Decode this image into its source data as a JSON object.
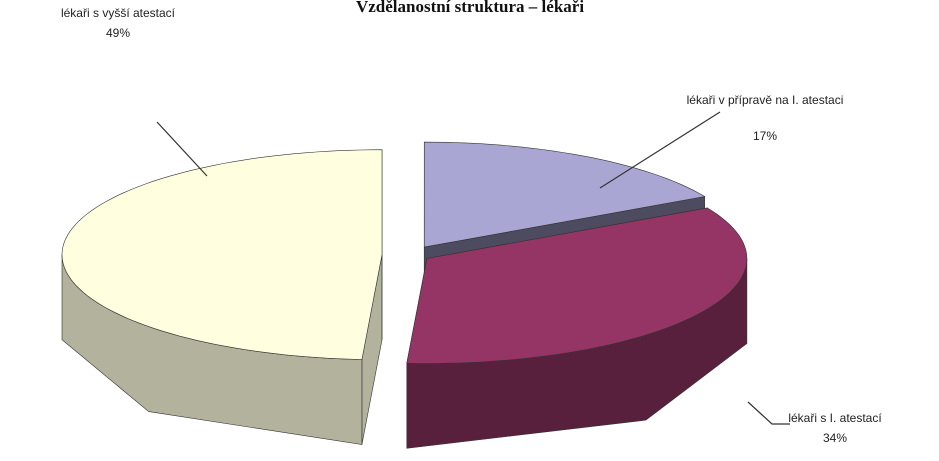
{
  "chart_data": {
    "type": "pie3d",
    "title": "Vzdělanostní struktura – lékaři",
    "categories": [
      "lékaři v přípravě na I. atestaci",
      "lékaři s I. atestací",
      "lékaři s vyšší atestací"
    ],
    "values": [
      17,
      34,
      49
    ],
    "value_labels": [
      "17%",
      "34%",
      "49%"
    ],
    "colors": [
      "#aaa6d4",
      "#953566",
      "#ffffe0"
    ]
  }
}
